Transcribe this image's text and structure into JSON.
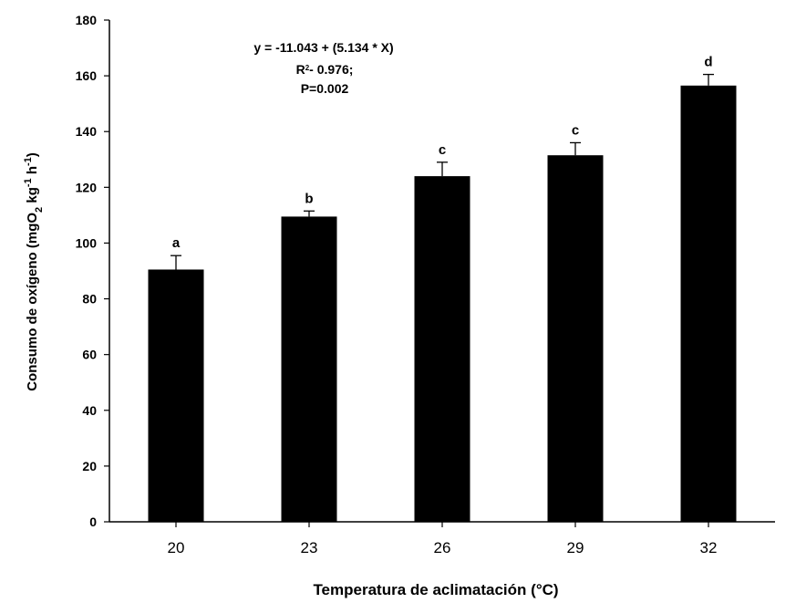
{
  "chart_data": {
    "type": "bar",
    "categories": [
      "20",
      "23",
      "26",
      "29",
      "32"
    ],
    "values": [
      90.5,
      109.5,
      124,
      131.5,
      156.5
    ],
    "error_upper": [
      5,
      2,
      5,
      4.5,
      4
    ],
    "significance_letters": [
      "a",
      "b",
      "c",
      "c",
      "d"
    ],
    "xlabel": "Temperatura de aclimatación (°C)",
    "ylabel_parts": {
      "main": "Consumo de oxígeno (mgO",
      "sub": "2",
      "kg": " kg",
      "kg_exp": "-1",
      "h": " h",
      "h_exp": "-1",
      "close": ")"
    },
    "ylim": [
      0,
      180
    ],
    "yticks": [
      "0",
      "20",
      "40",
      "60",
      "80",
      "100",
      "120",
      "140",
      "160",
      "180"
    ],
    "annotation": {
      "equation": "y = -11.043 + (5.134 * X)",
      "r2_prefix": "R",
      "r2_sup": "2",
      "r2_rest": "- 0.976;",
      "p": "P=0.002"
    },
    "bar_color": "#000000",
    "grid": false
  }
}
